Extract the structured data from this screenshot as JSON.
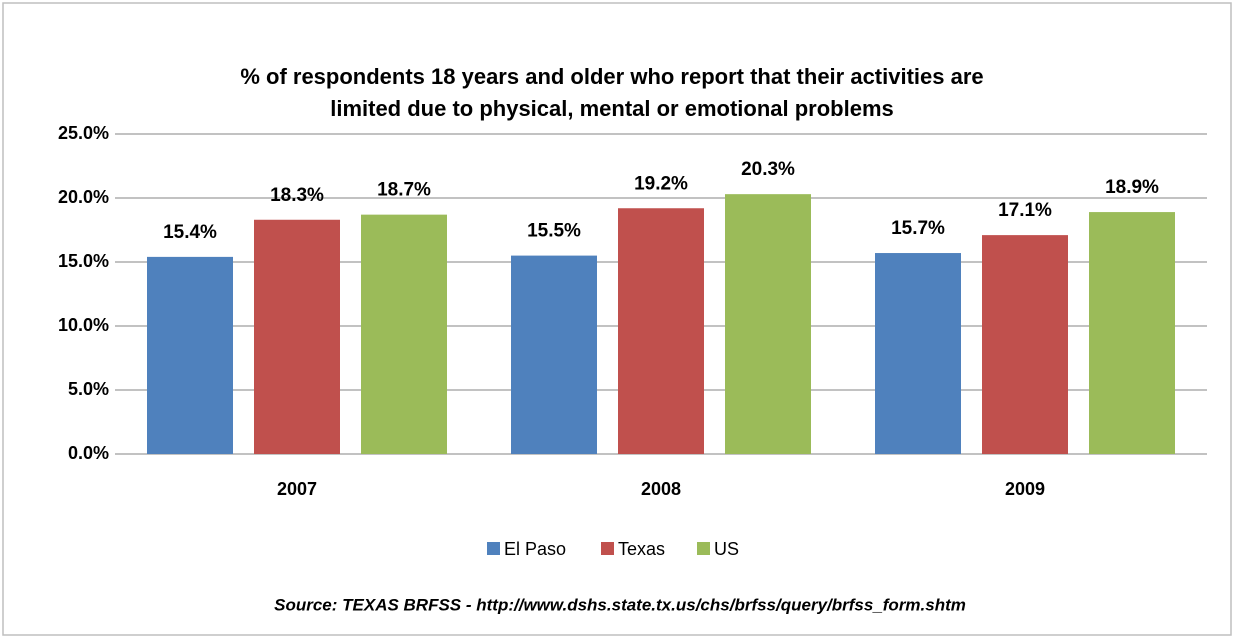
{
  "chart_data": {
    "type": "bar",
    "title": [
      "% of respondents 18 years and older who report that their activities are",
      "limited due to physical, mental or emotional problems"
    ],
    "categories": [
      "2007",
      "2008",
      "2009"
    ],
    "series": [
      {
        "name": "El Paso",
        "color": "#4f81bd",
        "values": [
          15.4,
          15.5,
          15.7
        ],
        "value_labels": [
          "15.4%",
          "15.5%",
          "15.7%"
        ]
      },
      {
        "name": "Texas",
        "color": "#c0504d",
        "values": [
          18.3,
          19.2,
          17.1
        ],
        "value_labels": [
          "18.3%",
          "19.2%",
          "17.1%"
        ]
      },
      {
        "name": "US",
        "color": "#9bbb59",
        "values": [
          18.7,
          20.3,
          18.9
        ],
        "value_labels": [
          "18.7%",
          "20.3%",
          "18.9%"
        ]
      }
    ],
    "ylim": [
      0,
      25
    ],
    "yticks": [
      {
        "value": 0,
        "label": "0.0%"
      },
      {
        "value": 5,
        "label": "5.0%"
      },
      {
        "value": 10,
        "label": "10.0%"
      },
      {
        "value": 15,
        "label": "15.0%"
      },
      {
        "value": 20,
        "label": "20.0%"
      },
      {
        "value": 25,
        "label": "25.0%"
      }
    ],
    "grid": true,
    "legend": "bottom",
    "source": "Source: TEXAS BRFSS - http://www.dshs.state.tx.us/chs/brfss/query/brfss_form.shtm"
  }
}
